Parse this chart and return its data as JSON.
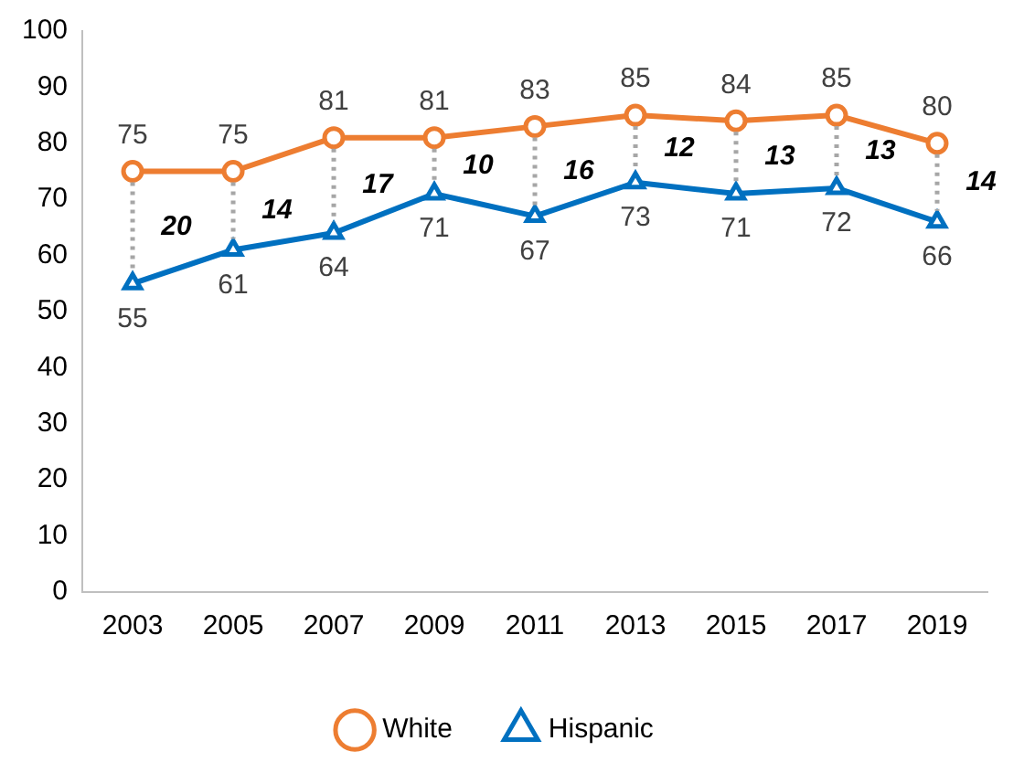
{
  "chart_data": {
    "type": "line",
    "categories": [
      "2003",
      "2005",
      "2007",
      "2009",
      "2011",
      "2013",
      "2015",
      "2017",
      "2019"
    ],
    "series": [
      {
        "name": "White",
        "color": "#ed7d31",
        "marker": "circle",
        "values": [
          75,
          75,
          81,
          81,
          83,
          85,
          84,
          85,
          80
        ]
      },
      {
        "name": "Hispanic",
        "color": "#0070c0",
        "marker": "triangle",
        "values": [
          55,
          61,
          64,
          71,
          67,
          73,
          71,
          72,
          66
        ]
      }
    ],
    "ylim": [
      0,
      100
    ],
    "yticks": [
      0,
      10,
      20,
      30,
      40,
      50,
      60,
      70,
      80,
      90,
      100
    ],
    "grid": false,
    "legend": "bottom",
    "data_labels": true,
    "annotations": [
      "20",
      "14",
      "17",
      "10",
      "16",
      "12",
      "13",
      "13",
      "14"
    ]
  }
}
